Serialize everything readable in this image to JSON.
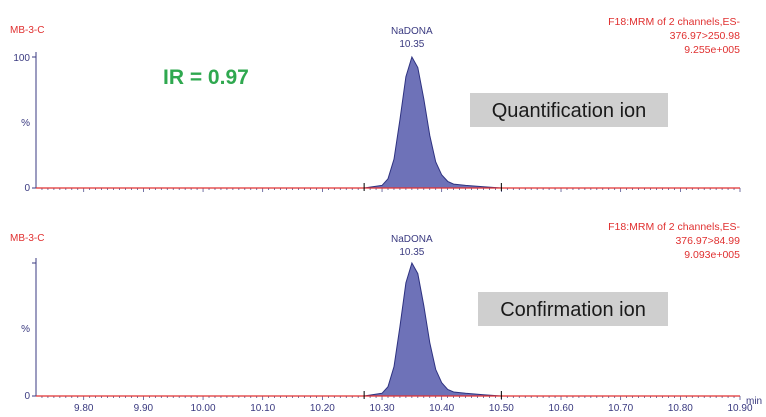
{
  "chart_data": [
    {
      "type": "area",
      "sample": "MB-3-C",
      "channel_lines": [
        "F18:MRM of 2 channels,ES-",
        "376.97>250.98",
        "9.255e+005"
      ],
      "peak_name": "NaDONA",
      "peak_rt": "10.35",
      "annotation": "IR = 0.97",
      "box_label": "Quantification ion",
      "ylabel": "%",
      "yticks": [
        "0",
        "100"
      ],
      "ylim": [
        0,
        100
      ],
      "xlim": [
        9.72,
        10.9
      ],
      "series": [
        {
          "x": [
            10.27,
            10.3,
            10.31,
            10.32,
            10.33,
            10.34,
            10.35,
            10.36,
            10.37,
            10.38,
            10.39,
            10.4,
            10.41,
            10.42,
            10.44,
            10.47,
            10.5
          ],
          "values": [
            0,
            2,
            7,
            22,
            52,
            85,
            100,
            92,
            68,
            40,
            20,
            10,
            5,
            3,
            2,
            1,
            0
          ]
        }
      ],
      "integration_start": 10.27,
      "integration_end": 10.5
    },
    {
      "type": "area",
      "sample": "MB-3-C",
      "channel_lines": [
        "F18:MRM of 2 channels,ES-",
        "376.97>84.99",
        "9.093e+005"
      ],
      "peak_name": "NaDONA",
      "peak_rt": "10.35",
      "box_label": "Confirmation ion",
      "ylabel": "%",
      "yticks": [
        "0"
      ],
      "ylim": [
        0,
        100
      ],
      "xlim": [
        9.72,
        10.9
      ],
      "series": [
        {
          "x": [
            10.27,
            10.3,
            10.31,
            10.32,
            10.33,
            10.34,
            10.35,
            10.36,
            10.37,
            10.38,
            10.39,
            10.4,
            10.41,
            10.42,
            10.44,
            10.47,
            10.5
          ],
          "values": [
            0,
            2,
            7,
            22,
            52,
            85,
            100,
            92,
            68,
            40,
            20,
            10,
            5,
            3,
            2,
            1,
            0
          ]
        }
      ],
      "integration_start": 10.27,
      "integration_end": 10.5,
      "xticks": [
        "9.80",
        "9.90",
        "10.00",
        "10.10",
        "10.20",
        "10.30",
        "10.40",
        "10.50",
        "10.60",
        "10.70",
        "10.80",
        "10.90"
      ],
      "xtick_values": [
        9.8,
        9.9,
        10.0,
        10.1,
        10.2,
        10.3,
        10.4,
        10.5,
        10.6,
        10.7,
        10.8,
        10.9
      ],
      "xunit": "min"
    }
  ],
  "colors": {
    "peak_fill": "#6e72b8",
    "peak_stroke": "#2e3280",
    "baseline": "#e03030",
    "header_text": "#e03030",
    "axis": "#3a3a80",
    "annotation": "#2fa84f",
    "label_box": "#cfcfcf"
  }
}
